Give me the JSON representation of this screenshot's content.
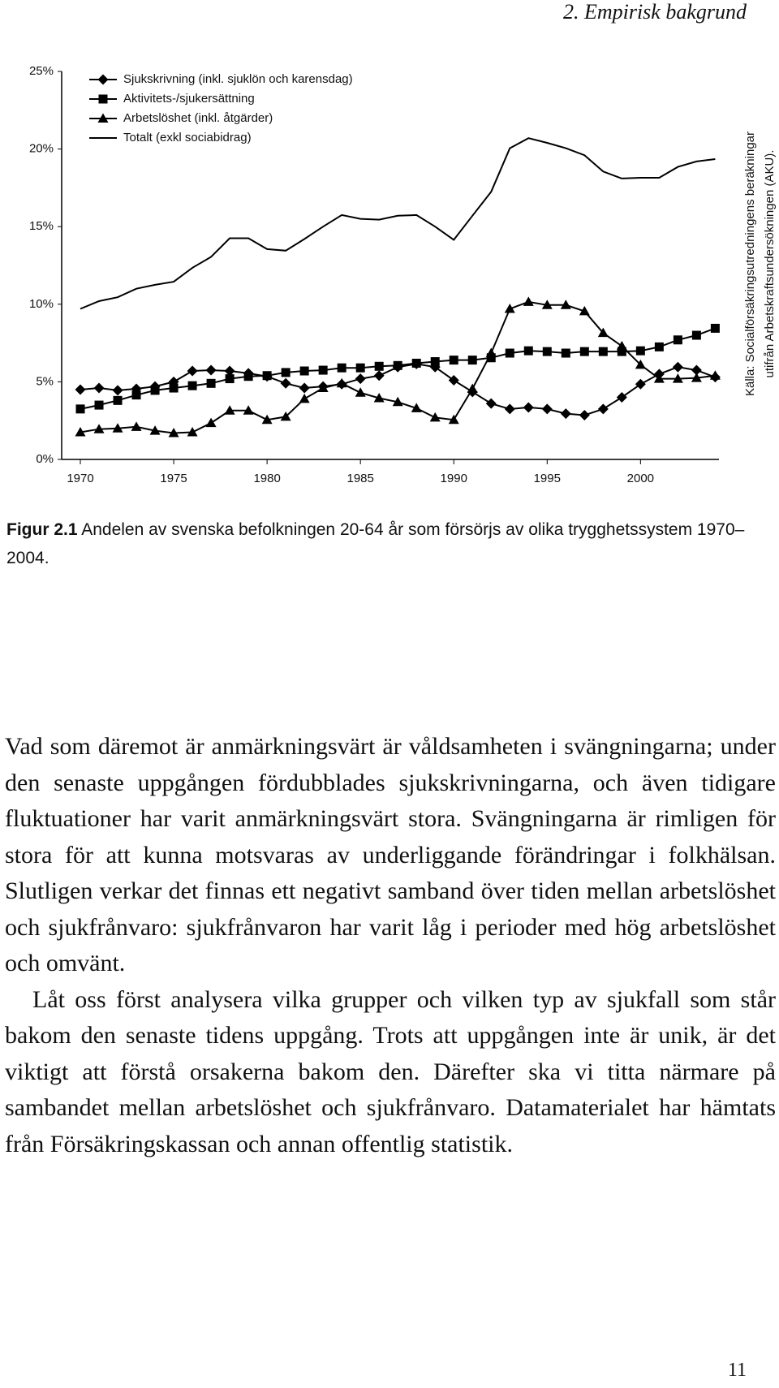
{
  "header": {
    "title": "2. Empirisk bakgrund"
  },
  "chart_data": {
    "type": "line",
    "x": [
      1970,
      1971,
      1972,
      1973,
      1974,
      1975,
      1976,
      1977,
      1978,
      1979,
      1980,
      1981,
      1982,
      1983,
      1984,
      1985,
      1986,
      1987,
      1988,
      1989,
      1990,
      1991,
      1992,
      1993,
      1994,
      1995,
      1996,
      1997,
      1998,
      1999,
      2000,
      2001,
      2002,
      2003,
      2004
    ],
    "xlim": [
      1969,
      2004.2
    ],
    "xticks": [
      1970,
      1975,
      1980,
      1985,
      1990,
      1995,
      2000
    ],
    "ylim": [
      0,
      25
    ],
    "yticks": [
      {
        "value": 0,
        "label": "0%"
      },
      {
        "value": 5,
        "label": "5%"
      },
      {
        "value": 10,
        "label": "10%"
      },
      {
        "value": 15,
        "label": "15%"
      },
      {
        "value": 20,
        "label": "20%"
      },
      {
        "value": 25,
        "label": "25%"
      }
    ],
    "grid": false,
    "legend": "top-left",
    "source": [
      "Källa: Socialförsäkringsutredningens beräkningar",
      "utifrån Arbetskraftsundersökningen (AKU)."
    ],
    "series": [
      {
        "name": "Sjukskrivning (inkl. sjuklön och karensdag)",
        "color": "#000000",
        "marker": "diamond",
        "values": [
          4.5,
          4.6,
          4.45,
          4.55,
          4.7,
          5.0,
          5.7,
          5.75,
          5.7,
          5.55,
          5.35,
          4.9,
          4.6,
          4.7,
          4.85,
          5.2,
          5.4,
          5.95,
          6.15,
          5.95,
          5.1,
          4.35,
          3.6,
          3.25,
          3.35,
          3.25,
          2.95,
          2.85,
          3.25,
          4.0,
          4.85,
          5.5,
          5.95,
          5.75,
          5.3
        ]
      },
      {
        "name": "Aktivitets-/sjukersättning",
        "color": "#000000",
        "marker": "square",
        "values": [
          3.25,
          3.5,
          3.8,
          4.15,
          4.45,
          4.6,
          4.75,
          4.9,
          5.2,
          5.35,
          5.4,
          5.6,
          5.7,
          5.75,
          5.9,
          5.9,
          6.0,
          6.05,
          6.2,
          6.3,
          6.4,
          6.4,
          6.55,
          6.85,
          7.0,
          6.95,
          6.85,
          6.95,
          6.95,
          6.95,
          7.0,
          7.25,
          7.7,
          8.0,
          8.45
        ]
      },
      {
        "name": "Arbetslöshet (inkl. åtgärder)",
        "color": "#000000",
        "marker": "triangle",
        "values": [
          1.75,
          1.95,
          2.0,
          2.1,
          1.85,
          1.7,
          1.75,
          2.35,
          3.15,
          3.15,
          2.55,
          2.75,
          3.9,
          4.6,
          4.9,
          4.3,
          3.95,
          3.7,
          3.3,
          2.7,
          2.55,
          4.55,
          6.85,
          9.7,
          10.15,
          9.95,
          9.95,
          9.55,
          8.15,
          7.3,
          6.1,
          5.2,
          5.2,
          5.25,
          5.4
        ]
      },
      {
        "name": "Totalt (exkl sociabidrag)",
        "color": "#000000",
        "marker": "none",
        "values": [
          9.7,
          10.2,
          10.45,
          11.0,
          11.25,
          11.45,
          12.35,
          13.05,
          14.25,
          14.25,
          13.55,
          13.45,
          14.2,
          15.0,
          15.75,
          15.5,
          15.45,
          15.7,
          15.75,
          15.0,
          14.15,
          15.7,
          17.25,
          20.05,
          20.7,
          20.4,
          20.05,
          19.6,
          18.55,
          18.1,
          18.15,
          18.15,
          18.85,
          19.2,
          19.35
        ]
      }
    ]
  },
  "caption": {
    "label": "Figur 2.1",
    "text": "Andelen av svenska befolkningen 20-64 år som försörjs av olika trygghetssystem 1970–2004."
  },
  "body": {
    "paragraphs": [
      "Vad som däremot är anmärkningsvärt är våldsamheten i svängningarna; under den senaste uppgången fördubblades sjukskrivningarna, och även tidigare fluktuationer har varit anmärkningsvärt stora. Svängningarna är rimligen för stora för att kunna motsvaras av underliggande förändringar i folkhälsan. Slutligen verkar det finnas ett negativt samband över tiden mellan arbetslöshet och sjukfrånvaro: sjukfrånvaron har varit låg i perioder med hög arbetslöshet och omvänt.",
      "Låt oss först analysera vilka grupper och vilken typ av sjukfall som står bakom den senaste tidens uppgång. Trots att uppgången inte är unik, är det viktigt att förstå orsakerna bakom den. Därefter ska vi titta närmare på sambandet mellan arbetslöshet och sjukfrånvaro. Datamaterialet har hämtats från Försäkringskassan och annan offentlig statistik."
    ]
  },
  "footer": {
    "page_number": "11"
  }
}
